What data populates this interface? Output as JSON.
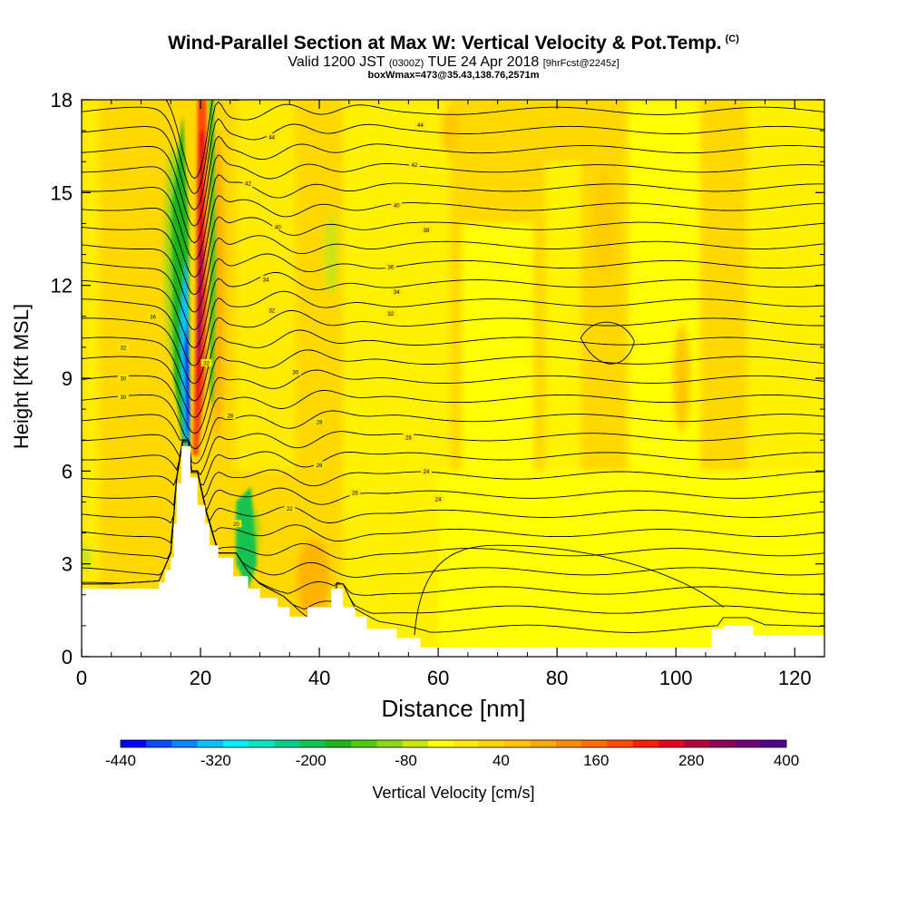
{
  "title": {
    "main": "Wind-Parallel Section at Max W: Vertical Velocity & Pot.Temp.",
    "copyright": "(C)",
    "valid_prefix": "Valid 1200 JST",
    "valid_zulu": "(0300Z)",
    "valid_date": "TUE 24 Apr 2018",
    "forecast": "[9hrFcst@2245z]",
    "box_info": "boxWmax=473@35.43,138.76,2571m"
  },
  "chart_data": {
    "type": "heatmap",
    "xlabel": "Distance [nm]",
    "ylabel": "Height [Kft MSL]",
    "xlim": [
      0,
      125
    ],
    "ylim": [
      0,
      18
    ],
    "x_ticks": [
      0,
      20,
      40,
      60,
      80,
      100,
      120
    ],
    "y_ticks": [
      0,
      3,
      6,
      9,
      12,
      15,
      18
    ],
    "colorbar": {
      "label": "Vertical Velocity [cm/s]",
      "tick_labels": [
        -440,
        -320,
        -200,
        -80,
        40,
        160,
        280,
        400
      ],
      "colors": [
        "#0000ff",
        "#0a4bff",
        "#0a87ff",
        "#00c3ff",
        "#00f0ff",
        "#00e6c0",
        "#00d28c",
        "#14c350",
        "#1eb41e",
        "#50c814",
        "#8cd61e",
        "#c8e614",
        "#ffff00",
        "#ffeb00",
        "#ffd700",
        "#ffc300",
        "#ffaa00",
        "#ff8c00",
        "#ff6e00",
        "#ff4b00",
        "#ff1e00",
        "#e6001e",
        "#b4003c",
        "#8c005a",
        "#6e0078",
        "#50008c"
      ]
    },
    "contour_labels": [
      {
        "x": 32,
        "y": 16.8,
        "text": "44"
      },
      {
        "x": 57,
        "y": 17.2,
        "text": "44"
      },
      {
        "x": 28,
        "y": 15.3,
        "text": "42"
      },
      {
        "x": 56,
        "y": 15.9,
        "text": "42"
      },
      {
        "x": 33,
        "y": 13.9,
        "text": "40"
      },
      {
        "x": 53,
        "y": 14.6,
        "text": "40"
      },
      {
        "x": 58,
        "y": 13.8,
        "text": "38"
      },
      {
        "x": 52,
        "y": 12.6,
        "text": "36"
      },
      {
        "x": 12,
        "y": 11.0,
        "text": "36"
      },
      {
        "x": 31,
        "y": 12.2,
        "text": "34"
      },
      {
        "x": 53,
        "y": 11.8,
        "text": "34"
      },
      {
        "x": 7,
        "y": 10.0,
        "text": "32"
      },
      {
        "x": 32,
        "y": 11.2,
        "text": "32"
      },
      {
        "x": 52,
        "y": 11.1,
        "text": "32"
      },
      {
        "x": 7,
        "y": 9.0,
        "text": "30"
      },
      {
        "x": 36,
        "y": 9.2,
        "text": "30"
      },
      {
        "x": 7,
        "y": 8.4,
        "text": "30"
      },
      {
        "x": 25,
        "y": 7.8,
        "text": "28"
      },
      {
        "x": 40,
        "y": 7.6,
        "text": "28"
      },
      {
        "x": 55,
        "y": 7.1,
        "text": "26"
      },
      {
        "x": 40,
        "y": 6.2,
        "text": "26"
      },
      {
        "x": 58,
        "y": 6.0,
        "text": "24"
      },
      {
        "x": 60,
        "y": 5.1,
        "text": "24"
      },
      {
        "x": 35,
        "y": 4.8,
        "text": "22"
      },
      {
        "x": 46,
        "y": 5.3,
        "text": "26"
      },
      {
        "x": 26,
        "y": 4.3,
        "text": "20"
      },
      {
        "x": 21,
        "y": 9.5,
        "text": "32"
      }
    ]
  }
}
